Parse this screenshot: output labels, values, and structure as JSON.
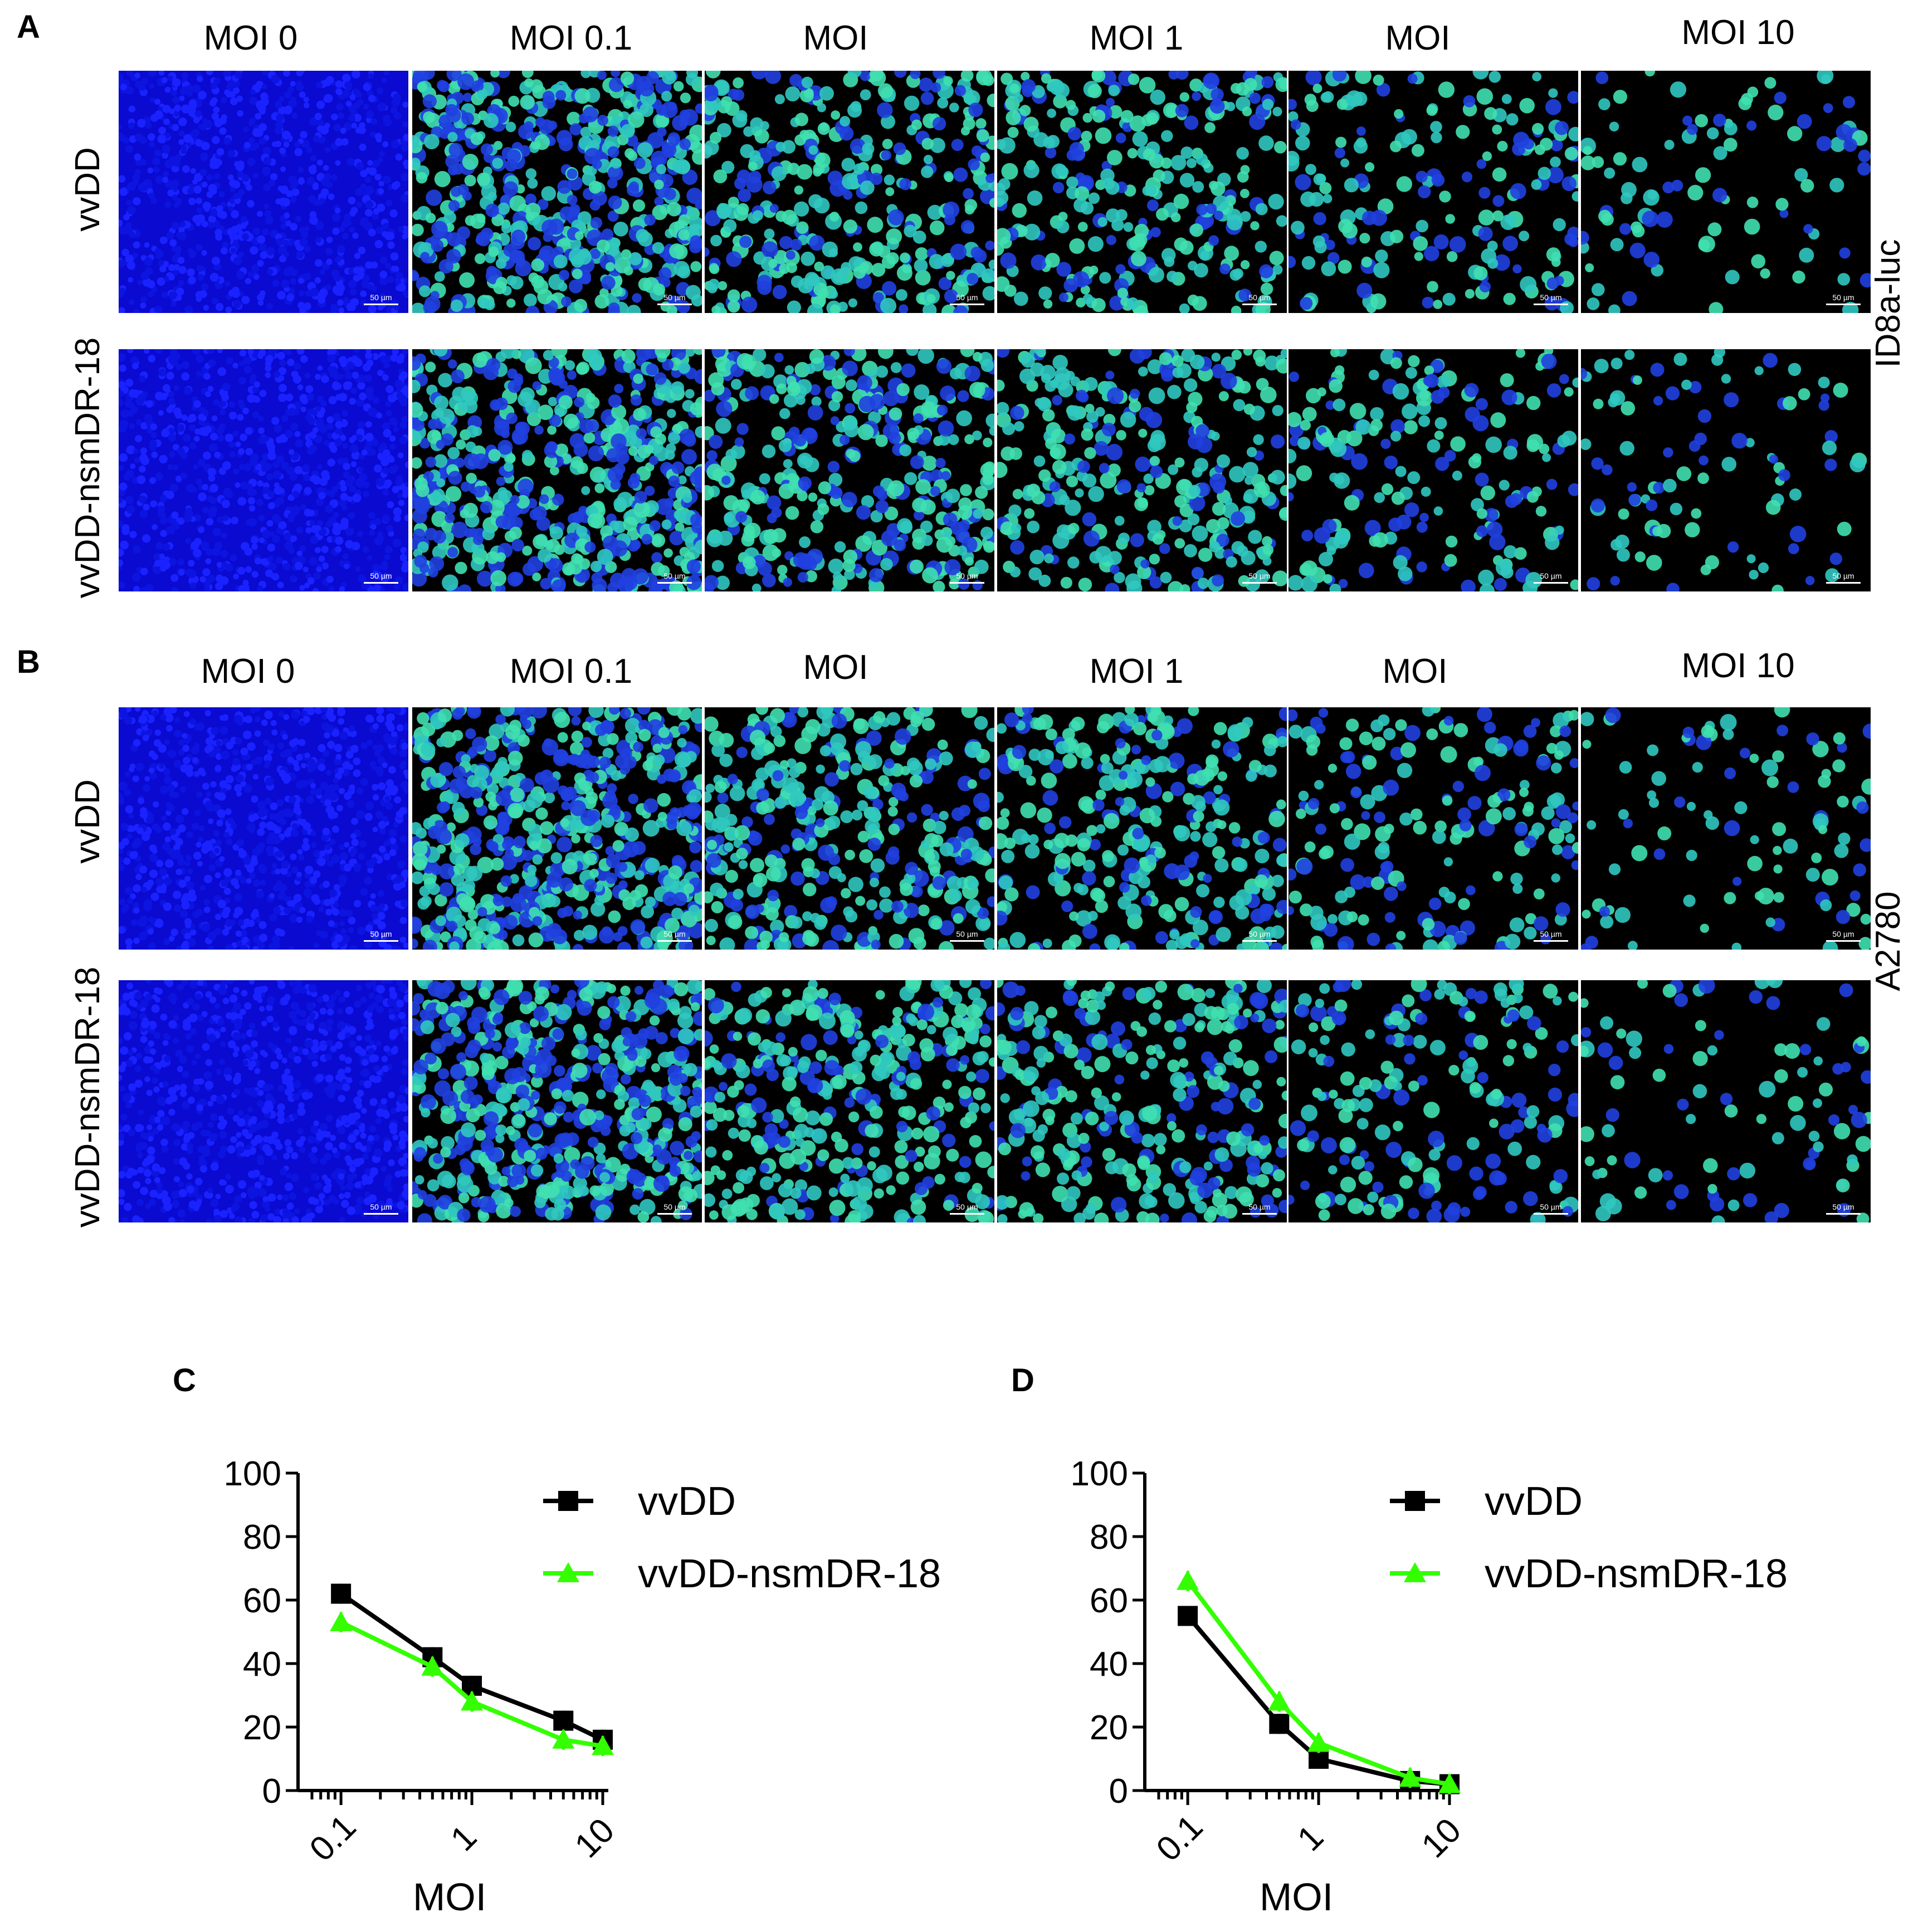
{
  "figure": {
    "panels": {
      "A": {
        "letter": "A",
        "columns": [
          "MOI 0",
          "MOI 0.1",
          "MOI",
          "MOI 1",
          "MOI",
          "MOI 10"
        ],
        "rows": [
          "vvDD",
          "vvDD-nsmDR-18"
        ],
        "cell_line": "ID8a-luc"
      },
      "B": {
        "letter": "B",
        "columns": [
          "MOI 0",
          "MOI 0.1",
          "MOI",
          "MOI 1",
          "MOI",
          "MOI 10"
        ],
        "rows": [
          "vvDD",
          "vvDD-nsmDR-18"
        ],
        "cell_line": "A2780"
      },
      "C": {
        "letter": "C"
      },
      "D": {
        "letter": "D"
      }
    },
    "scale_bar_label": "50 µm",
    "colors": {
      "nucleus_blue": "#1a1aff",
      "infected_green": "#33ff99",
      "vvDD": "#000000",
      "vvDD_nsmDR_18": "#33ff00"
    }
  },
  "chart_data": [
    {
      "panel": "C",
      "type": "line",
      "xlabel": "MOI",
      "ylabel": "",
      "x_scale": "log",
      "xlim": [
        0.06,
        10
      ],
      "ylim": [
        0,
        100
      ],
      "x_ticks": [
        "0.1",
        "1",
        "10"
      ],
      "y_ticks": [
        0,
        20,
        40,
        60,
        80,
        100
      ],
      "legend_position": "top-right",
      "series": [
        {
          "name": "vvDD",
          "color": "#000000",
          "marker": "square",
          "x": [
            0.1,
            0.5,
            1,
            5,
            10
          ],
          "y": [
            62,
            42,
            33,
            22,
            16
          ]
        },
        {
          "name": "vvDD-nsmDR-18",
          "color": "#33ff00",
          "marker": "triangle",
          "x": [
            0.1,
            0.5,
            1,
            5,
            10
          ],
          "y": [
            53,
            39,
            28,
            16,
            14
          ]
        }
      ]
    },
    {
      "panel": "D",
      "type": "line",
      "xlabel": "MOI",
      "ylabel": "",
      "x_scale": "log",
      "xlim": [
        0.06,
        10
      ],
      "ylim": [
        0,
        100
      ],
      "x_ticks": [
        "0.1",
        "1",
        "10"
      ],
      "y_ticks": [
        0,
        20,
        40,
        60,
        80,
        100
      ],
      "legend_position": "top-right",
      "series": [
        {
          "name": "vvDD",
          "color": "#000000",
          "marker": "square",
          "x": [
            0.1,
            0.5,
            1,
            5,
            10
          ],
          "y": [
            55,
            21,
            10,
            3,
            2
          ]
        },
        {
          "name": "vvDD-nsmDR-18",
          "color": "#33ff00",
          "marker": "triangle",
          "x": [
            0.1,
            0.5,
            1,
            5,
            10
          ],
          "y": [
            66,
            28,
            15,
            4,
            2
          ]
        }
      ]
    }
  ]
}
